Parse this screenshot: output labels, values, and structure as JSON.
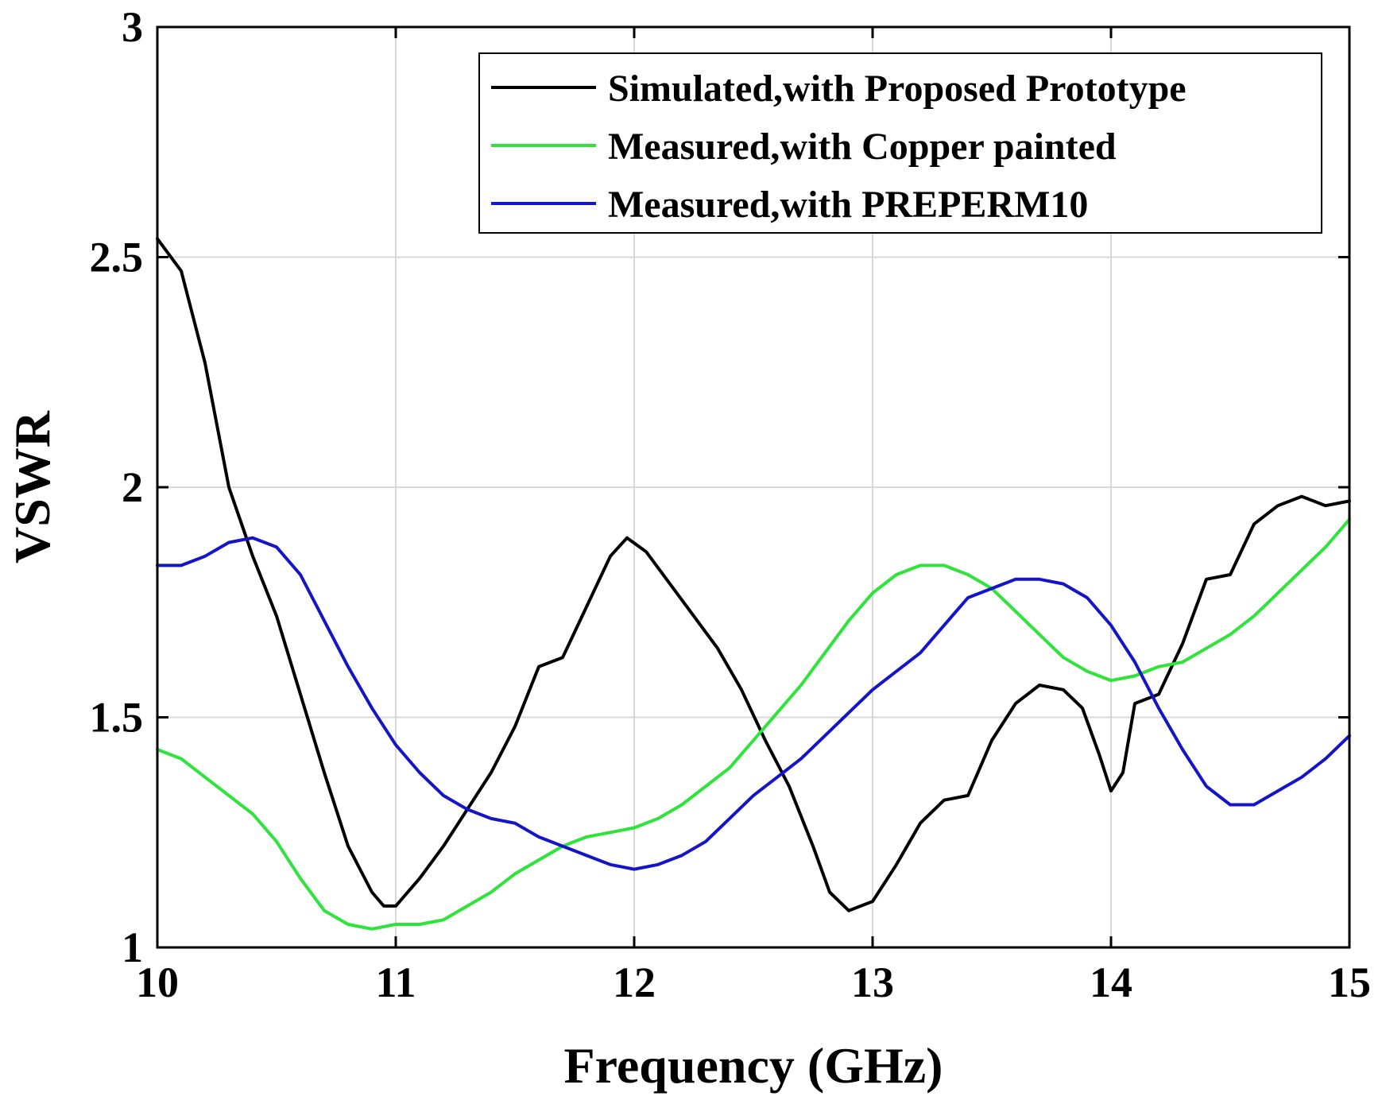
{
  "chart_data": {
    "type": "line",
    "title": "",
    "xlabel": "Frequency (GHz)",
    "ylabel": "VSWR",
    "xlim": [
      10,
      15
    ],
    "ylim": [
      1,
      3
    ],
    "grid": true,
    "legend_position": "top-right",
    "xticks": [
      "10",
      "11",
      "12",
      "13",
      "14",
      "15"
    ],
    "yticks": [
      "1",
      "1.5",
      "2",
      "2.5",
      "3"
    ],
    "series": [
      {
        "name": "Simulated,with Proposed Prototype",
        "color": "#000000",
        "x": [
          10.0,
          10.1,
          10.2,
          10.3,
          10.4,
          10.5,
          10.6,
          10.7,
          10.8,
          10.9,
          10.95,
          11.0,
          11.1,
          11.2,
          11.3,
          11.4,
          11.5,
          11.6,
          11.7,
          11.8,
          11.9,
          11.97,
          12.05,
          12.15,
          12.25,
          12.35,
          12.45,
          12.55,
          12.65,
          12.75,
          12.82,
          12.9,
          13.0,
          13.1,
          13.2,
          13.3,
          13.4,
          13.5,
          13.6,
          13.7,
          13.8,
          13.88,
          13.95,
          14.0,
          14.05,
          14.1,
          14.2,
          14.3,
          14.4,
          14.5,
          14.6,
          14.7,
          14.8,
          14.9,
          15.0
        ],
        "values": [
          2.54,
          2.47,
          2.27,
          2.0,
          1.85,
          1.72,
          1.55,
          1.38,
          1.22,
          1.12,
          1.09,
          1.09,
          1.15,
          1.22,
          1.3,
          1.38,
          1.48,
          1.61,
          1.63,
          1.74,
          1.85,
          1.89,
          1.86,
          1.79,
          1.72,
          1.65,
          1.56,
          1.45,
          1.35,
          1.22,
          1.12,
          1.08,
          1.1,
          1.18,
          1.27,
          1.32,
          1.33,
          1.45,
          1.53,
          1.57,
          1.56,
          1.52,
          1.42,
          1.34,
          1.38,
          1.53,
          1.55,
          1.66,
          1.8,
          1.81,
          1.92,
          1.96,
          1.98,
          1.96,
          1.97
        ]
      },
      {
        "name": "Measured,with Copper painted",
        "color": "#2ee33a",
        "x": [
          10.0,
          10.1,
          10.2,
          10.3,
          10.4,
          10.5,
          10.6,
          10.7,
          10.8,
          10.9,
          11.0,
          11.1,
          11.2,
          11.3,
          11.4,
          11.5,
          11.6,
          11.7,
          11.8,
          11.9,
          12.0,
          12.1,
          12.2,
          12.3,
          12.4,
          12.5,
          12.6,
          12.7,
          12.8,
          12.9,
          13.0,
          13.1,
          13.2,
          13.3,
          13.4,
          13.5,
          13.6,
          13.7,
          13.8,
          13.9,
          14.0,
          14.1,
          14.2,
          14.3,
          14.4,
          14.5,
          14.6,
          14.7,
          14.8,
          14.9,
          15.0
        ],
        "values": [
          1.43,
          1.41,
          1.37,
          1.33,
          1.29,
          1.23,
          1.15,
          1.08,
          1.05,
          1.04,
          1.05,
          1.05,
          1.06,
          1.09,
          1.12,
          1.16,
          1.19,
          1.22,
          1.24,
          1.25,
          1.26,
          1.28,
          1.31,
          1.35,
          1.39,
          1.45,
          1.51,
          1.57,
          1.64,
          1.71,
          1.77,
          1.81,
          1.83,
          1.83,
          1.81,
          1.78,
          1.73,
          1.68,
          1.63,
          1.6,
          1.58,
          1.59,
          1.61,
          1.62,
          1.65,
          1.68,
          1.72,
          1.77,
          1.82,
          1.87,
          1.93
        ]
      },
      {
        "name": "Measured,with PREPERM10",
        "color": "#1414c8",
        "x": [
          10.0,
          10.1,
          10.2,
          10.3,
          10.4,
          10.5,
          10.6,
          10.7,
          10.8,
          10.9,
          11.0,
          11.1,
          11.2,
          11.3,
          11.4,
          11.5,
          11.6,
          11.7,
          11.8,
          11.9,
          12.0,
          12.1,
          12.2,
          12.3,
          12.4,
          12.5,
          12.6,
          12.7,
          12.8,
          12.9,
          13.0,
          13.1,
          13.2,
          13.3,
          13.4,
          13.5,
          13.6,
          13.7,
          13.8,
          13.9,
          14.0,
          14.1,
          14.2,
          14.3,
          14.4,
          14.5,
          14.6,
          14.7,
          14.8,
          14.9,
          15.0
        ],
        "values": [
          1.83,
          1.83,
          1.85,
          1.88,
          1.89,
          1.87,
          1.81,
          1.71,
          1.61,
          1.52,
          1.44,
          1.38,
          1.33,
          1.3,
          1.28,
          1.27,
          1.24,
          1.22,
          1.2,
          1.18,
          1.17,
          1.18,
          1.2,
          1.23,
          1.28,
          1.33,
          1.37,
          1.41,
          1.46,
          1.51,
          1.56,
          1.6,
          1.64,
          1.7,
          1.76,
          1.78,
          1.8,
          1.8,
          1.79,
          1.76,
          1.7,
          1.62,
          1.52,
          1.43,
          1.35,
          1.31,
          1.31,
          1.34,
          1.37,
          1.41,
          1.46
        ]
      }
    ]
  }
}
